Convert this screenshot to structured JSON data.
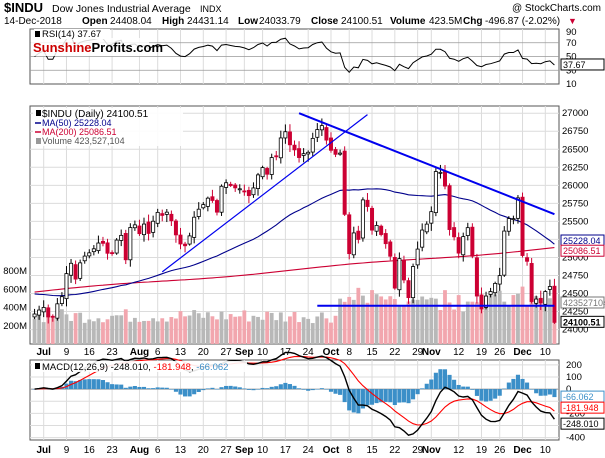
{
  "header": {
    "symbol": "$INDU",
    "name": "Dow Jones Industrial Average",
    "exchange": "INDX",
    "credit": "@ StockCharts.com",
    "date": "14-Dec-2018",
    "open_label": "Open",
    "open": "24408.04",
    "high_label": "High",
    "high": "24431.14",
    "low_label": "Low",
    "low": "24033.79",
    "close_label": "Close",
    "close": "24100.51",
    "volume_label": "Volume",
    "volume": "423.5M",
    "chg_label": "Chg",
    "chg": "-496.87 (-2.02%)",
    "chg_arrow": "▼"
  },
  "logo": {
    "part1": "Sunshine",
    "part2": "Profits",
    "part3": ".com"
  },
  "colors": {
    "up": "#ffffff",
    "down": "#cc0033",
    "ma50": "#00008b",
    "ma200": "#cc0033",
    "trendline": "#0000ee",
    "vol_up": "#b8b8b8",
    "vol_down": "#f2a6ae",
    "macd_hist": "#3b8fc8",
    "macd_signal": "#ff0000",
    "macd_line": "#000000",
    "grid": "#dcdcdc"
  },
  "rsi_panel": {
    "label": "RSI(14) 37.67",
    "current_value": "37.67",
    "ticks": [
      "90",
      "70",
      "50",
      "30",
      "10"
    ]
  },
  "price_panel": {
    "legend": [
      {
        "text": "$INDU (Daily) 24100.51",
        "color": "#000000"
      },
      {
        "text": "MA(50) 25228.04",
        "color": "#00008b"
      },
      {
        "text": "MA(200) 25086.51",
        "color": "#cc0033"
      },
      {
        "text": "Volume 423,527,104",
        "color": "#777777"
      }
    ],
    "price_ticks": [
      "27000",
      "26750",
      "26500",
      "26250",
      "26000",
      "25750",
      "25500",
      "25250",
      "25000",
      "24750",
      "24500",
      "24250",
      "24000"
    ],
    "volume_ticks": [
      "800M",
      "600M",
      "400M",
      "200M"
    ],
    "value_labels": [
      {
        "text": "25228.04",
        "color": "#00008b"
      },
      {
        "text": "25086.51",
        "color": "#cc0033"
      },
      {
        "text": "423527104",
        "color": "#777777"
      },
      {
        "text": "24100.51",
        "color": "#000000"
      }
    ]
  },
  "macd_panel": {
    "label": "MACD(12,26,9)",
    "macd": "-248.010",
    "signal": "-181.948",
    "hist": "-66.062",
    "ticks": [
      "200",
      "100",
      "0",
      "-100",
      "-200",
      "-300",
      "-400"
    ],
    "value_labels": [
      {
        "text": "-66.062",
        "color": "#3b8fc8"
      },
      {
        "text": "-181.948",
        "color": "#ff0000"
      },
      {
        "text": "-248.010",
        "color": "#000000"
      }
    ]
  },
  "x_axis": [
    {
      "label": "Jul",
      "i": 2,
      "bold": true
    },
    {
      "label": "9",
      "i": 7
    },
    {
      "label": "16",
      "i": 12
    },
    {
      "label": "23",
      "i": 17
    },
    {
      "label": "Aug",
      "i": 23,
      "bold": true
    },
    {
      "label": "6",
      "i": 27
    },
    {
      "label": "13",
      "i": 32
    },
    {
      "label": "20",
      "i": 37
    },
    {
      "label": "27",
      "i": 42
    },
    {
      "label": "Sep",
      "i": 46,
      "bold": true
    },
    {
      "label": "10",
      "i": 50
    },
    {
      "label": "17",
      "i": 55
    },
    {
      "label": "24",
      "i": 60
    },
    {
      "label": "Oct",
      "i": 65,
      "bold": true
    },
    {
      "label": "8",
      "i": 69
    },
    {
      "label": "15",
      "i": 74
    },
    {
      "label": "22",
      "i": 79
    },
    {
      "label": "29",
      "i": 84
    },
    {
      "label": "Nov",
      "i": 87,
      "bold": true
    },
    {
      "label": "12",
      "i": 93
    },
    {
      "label": "19",
      "i": 98
    },
    {
      "label": "26",
      "i": 102
    },
    {
      "label": "Dec",
      "i": 107,
      "bold": true
    },
    {
      "label": "10",
      "i": 112
    }
  ],
  "chart_data": {
    "type": "candlestick",
    "title": "$INDU Dow Jones Industrial Average (Daily)",
    "date_range": [
      "2018-06-28",
      "2018-12-14"
    ],
    "close": [
      24216,
      24271,
      24307,
      24175,
      24174,
      24357,
      24456,
      24776,
      24919,
      24700,
      24925,
      25019,
      25064,
      25120,
      25200,
      25196,
      25058,
      25064,
      25241,
      25306,
      24968,
      25415,
      25452,
      25330,
      25463,
      25333,
      25502,
      25625,
      25583,
      25628,
      25509,
      25313,
      25187,
      25162,
      25299,
      25558,
      25669,
      25733,
      25822,
      25790,
      25628,
      25987,
      26036,
      25997,
      25965,
      25952,
      25916,
      25857,
      25964,
      26145,
      26246,
      26154,
      26385,
      26405,
      26657,
      26743,
      26562,
      26492,
      26385,
      26439,
      26458,
      26651,
      26773,
      26828,
      26627,
      26486,
      26430,
      26447,
      25598,
      25053,
      25340,
      25250,
      25798,
      25706,
      25379,
      25444,
      25318,
      25191,
      25017,
      24575,
      24984,
      24688,
      24443,
      24874,
      25116,
      25380,
      25462,
      25635,
      26191,
      26180,
      25990,
      25387,
      25286,
      25060,
      25289,
      25413,
      25017,
      24465,
      24286,
      24465,
      24527,
      24640,
      24748,
      25366,
      25539,
      25538,
      25826,
      25027,
      24947,
      24389,
      24423,
      24370,
      24527,
      24597,
      24100
    ],
    "indicators": {
      "ma50": {
        "current": 25228.04
      },
      "ma200": {
        "current": 25086.51
      },
      "rsi14": {
        "current": 37.67
      },
      "macd": {
        "params": "12,26,9",
        "macd": -248.01,
        "signal": -181.948,
        "histogram": -66.062
      }
    },
    "volume_last": 423527104,
    "y_range_price": [
      23800,
      27100
    ],
    "y_range_volume_millions": [
      0,
      900
    ],
    "y_range_rsi": [
      10,
      90
    ],
    "y_range_macd": [
      -420,
      240
    ],
    "annotations": [
      {
        "type": "trendline",
        "from_index": 28,
        "from_price": 24800,
        "to_index": 73,
        "to_price": 26980
      },
      {
        "type": "trendline",
        "from_index": 58,
        "from_price": 27000,
        "to_index": 114,
        "to_price": 25600
      },
      {
        "type": "horizontal",
        "from_index": 62,
        "to_index": 114,
        "price": 24330
      }
    ]
  }
}
